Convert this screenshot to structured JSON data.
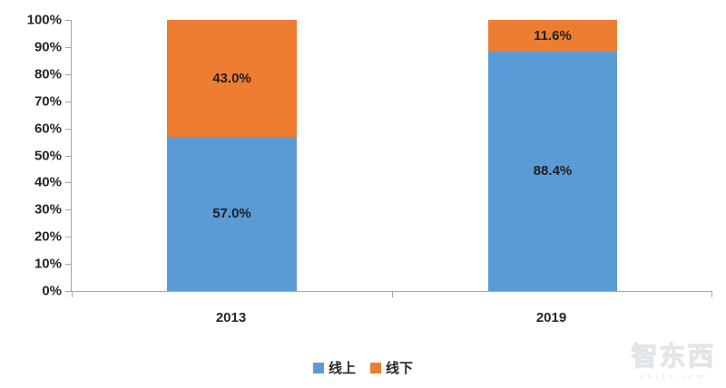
{
  "chart_data": {
    "type": "bar",
    "stacked": true,
    "title": "",
    "categories": [
      "2013",
      "2019"
    ],
    "series": [
      {
        "name": "线上",
        "color": "#5B9BD5",
        "values": [
          57.0,
          88.4
        ],
        "data_labels": [
          "57.0%",
          "88.4%"
        ]
      },
      {
        "name": "线下",
        "color": "#ED7D31",
        "values": [
          43.0,
          11.6
        ],
        "data_labels": [
          "43.0%",
          "11.6%"
        ]
      }
    ],
    "xlabel": "",
    "ylabel": "",
    "ylim": [
      0,
      100
    ],
    "yticks": [
      "100%",
      "90%",
      "80%",
      "70%",
      "60%",
      "50%",
      "40%",
      "30%",
      "20%",
      "10%",
      "0%"
    ],
    "grid": false,
    "legend_position": "bottom",
    "axis_color": "#A6A6A6",
    "label_color": "#262626",
    "background": "#FFFFFF"
  },
  "legend": {
    "items": [
      {
        "label": "线上",
        "color": "#5B9BD5"
      },
      {
        "label": "线下",
        "color": "#ED7D31"
      }
    ]
  },
  "watermark": {
    "title": "智东西",
    "subtitle": "zhidx.com"
  }
}
